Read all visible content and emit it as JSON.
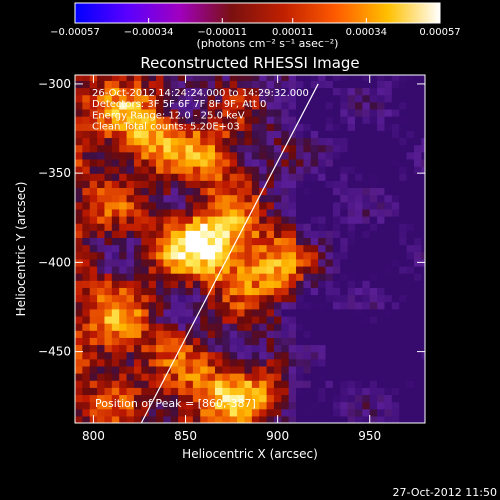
{
  "chart_data": {
    "type": "heatmap",
    "title": "Reconstructed RHESSI Image",
    "xlabel": "Heliocentric X (arcsec)",
    "ylabel": "Heliocentric Y (arcsec)",
    "xlim": [
      790,
      980
    ],
    "ylim": [
      -490,
      -295
    ],
    "xticks": [
      800,
      850,
      900,
      950
    ],
    "yticks": [
      -300,
      -350,
      -400,
      -450
    ],
    "xtick_labels": [
      "800",
      "850",
      "900",
      "950"
    ],
    "ytick_labels": [
      "−300",
      "−350",
      "−400",
      "−450"
    ],
    "colorbar": {
      "range": [
        -0.00057,
        0.00057
      ],
      "tick_values": [
        -0.00057,
        -0.00034,
        -0.00011,
        0.00011,
        0.00034,
        0.00057
      ],
      "tick_labels": [
        "−0.00057",
        "−0.00034",
        "−0.00011",
        "0.00011",
        "0.00034",
        "0.00057"
      ],
      "units": "(photons cm⁻² s⁻¹ asec⁻²)",
      "colors": [
        "#0000ff",
        "#5a00ff",
        "#a000c0",
        "#7a1010",
        "#c02000",
        "#ff5a00",
        "#ffc000",
        "#ffffff"
      ]
    },
    "annotations": [
      "26-Oct-2012 14:24:24.000 to 14:29:32.000",
      "Detectors: 3F 5F 6F 7F 8F 9F, Att 0",
      "Energy Range: 12.0 - 25.0 keV",
      "Clean    Total counts: 5.20E+03"
    ],
    "peak_label": "Position of Peak = [860,-387]",
    "limb_line": {
      "x": [
        826,
        922
      ],
      "y": [
        -490,
        -300
      ]
    },
    "bright_regions": [
      {
        "x": 858,
        "y": -387,
        "level": 1.0
      },
      {
        "x": 826,
        "y": -325,
        "level": 0.8
      },
      {
        "x": 868,
        "y": -340,
        "level": 0.75
      },
      {
        "x": 880,
        "y": -395,
        "level": 0.8
      },
      {
        "x": 903,
        "y": -405,
        "level": 0.75
      },
      {
        "x": 860,
        "y": -475,
        "level": 0.8
      },
      {
        "x": 890,
        "y": -470,
        "level": 0.7
      },
      {
        "x": 815,
        "y": -440,
        "level": 0.55
      }
    ],
    "timestamp": "27-Oct-2012 11:50"
  },
  "colors": {
    "background": "#000000",
    "frame": "#ffffff",
    "limb": "#ffffff"
  }
}
